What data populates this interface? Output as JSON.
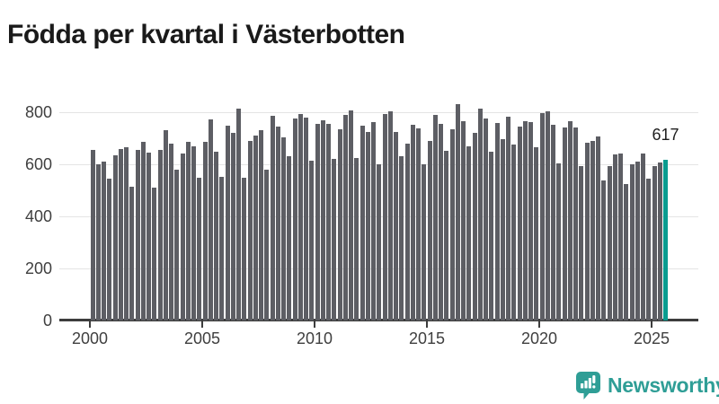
{
  "title": "Födda per kvartal i Västerbotten",
  "annotation": {
    "value_label": "617"
  },
  "logo": {
    "text": "Newsworthy",
    "icon": "bar-chart-speech-bubble-icon"
  },
  "colors": {
    "bar": "#5d5e64",
    "highlight": "#0a9c90",
    "logo": "#2f9e96",
    "grid": "#e4e4e4",
    "axis": "#3d3d3d",
    "title_text": "#1a1a1a"
  },
  "chart_data": {
    "type": "bar",
    "title": "Födda per kvartal i Västerbotten",
    "xlabel": "",
    "ylabel": "",
    "unit": "births per quarter",
    "frequency": "quarterly",
    "start_quarter": "2000-Q1",
    "end_quarter": "2025-Q3",
    "x_tick_labels": [
      "2000",
      "2005",
      "2010",
      "2015",
      "2020",
      "2025"
    ],
    "y_ticks": [
      0,
      200,
      400,
      600,
      800
    ],
    "y_tick_labels": [
      "0",
      "200",
      "400",
      "600",
      "800"
    ],
    "ylim": [
      0,
      870
    ],
    "grid": "horizontal",
    "legend": "none",
    "highlight_last_bar": true,
    "last_value_label": "617",
    "values": [
      655,
      600,
      610,
      545,
      635,
      660,
      665,
      515,
      655,
      685,
      645,
      510,
      655,
      730,
      680,
      580,
      640,
      685,
      670,
      550,
      685,
      773,
      648,
      552,
      750,
      720,
      815,
      550,
      690,
      710,
      730,
      580,
      785,
      745,
      705,
      630,
      775,
      795,
      780,
      615,
      755,
      768,
      757,
      620,
      735,
      790,
      808,
      623,
      750,
      726,
      762,
      600,
      795,
      805,
      726,
      630,
      680,
      752,
      737,
      600,
      690,
      790,
      757,
      653,
      734,
      830,
      765,
      668,
      722,
      813,
      777,
      648,
      760,
      697,
      783,
      677,
      745,
      765,
      762,
      665,
      796,
      802,
      752,
      602,
      740,
      765,
      743,
      592,
      683,
      691,
      706,
      537,
      595,
      637,
      643,
      526,
      600,
      611,
      640,
      545,
      594,
      606,
      617
    ]
  }
}
